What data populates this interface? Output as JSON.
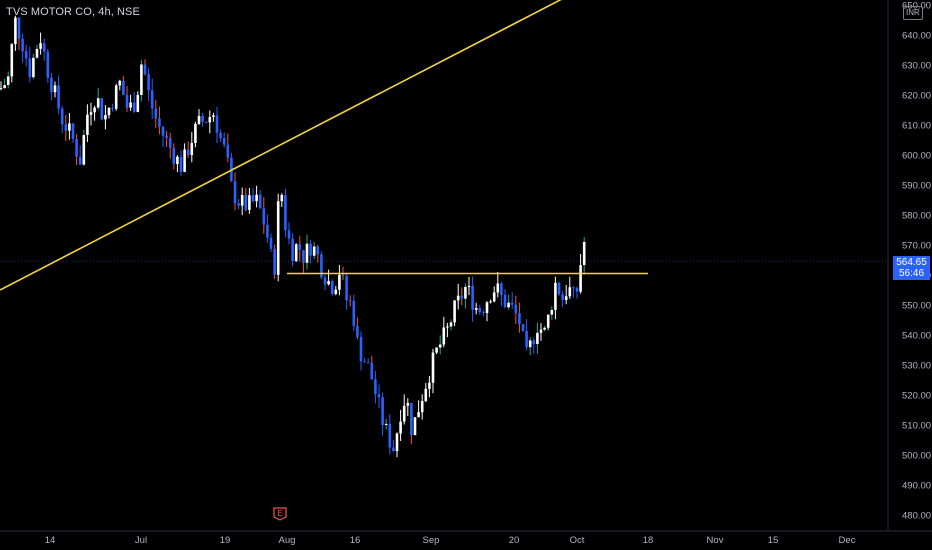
{
  "header": {
    "title": "TVS MOTOR CO, 4h, NSE",
    "currency": "INR"
  },
  "price_tag": {
    "price": "564.65",
    "countdown": "56:46"
  },
  "earnings_marker": {
    "label": "E"
  },
  "colors": {
    "background": "#000000",
    "up": "#ffffff",
    "down": "#2962ff",
    "wick_down": "#ef5350",
    "wick_up": "#26a69a",
    "trendline": "#f2d43c",
    "price_tag": "#2962ff",
    "axis_text": "#b2b5be"
  },
  "chart_data": {
    "type": "candlestick",
    "ylim": [
      477,
      652
    ],
    "y_ticks": [
      480,
      490,
      500,
      510,
      520,
      530,
      540,
      550,
      560,
      570,
      580,
      590,
      600,
      610,
      620,
      630,
      640,
      650
    ],
    "x_labels": [
      "14",
      "Jul",
      "19",
      "Aug",
      "16",
      "Sep",
      "20",
      "Oct",
      "18",
      "Nov",
      "15",
      "Dec"
    ],
    "last_price": 564.65,
    "price_path": [
      [
        0,
        622
      ],
      [
        8,
        625
      ],
      [
        15,
        645
      ],
      [
        22,
        638
      ],
      [
        30,
        628
      ],
      [
        40,
        640
      ],
      [
        48,
        628
      ],
      [
        55,
        620
      ],
      [
        62,
        612
      ],
      [
        72,
        606
      ],
      [
        80,
        598
      ],
      [
        88,
        615
      ],
      [
        96,
        620
      ],
      [
        104,
        612
      ],
      [
        112,
        618
      ],
      [
        120,
        624
      ],
      [
        128,
        615
      ],
      [
        136,
        618
      ],
      [
        142,
        632
      ],
      [
        150,
        618
      ],
      [
        158,
        610
      ],
      [
        166,
        605
      ],
      [
        174,
        600
      ],
      [
        182,
        596
      ],
      [
        190,
        604
      ],
      [
        198,
        610
      ],
      [
        206,
        612
      ],
      [
        214,
        614
      ],
      [
        220,
        606
      ],
      [
        226,
        600
      ],
      [
        232,
        588
      ],
      [
        240,
        584
      ],
      [
        248,
        583
      ],
      [
        256,
        585
      ],
      [
        262,
        580
      ],
      [
        268,
        572
      ],
      [
        274,
        560
      ],
      [
        280,
        592
      ],
      [
        286,
        575
      ],
      [
        292,
        568
      ],
      [
        298,
        570
      ],
      [
        304,
        566
      ],
      [
        310,
        570
      ],
      [
        316,
        568
      ],
      [
        322,
        562
      ],
      [
        328,
        558
      ],
      [
        334,
        556
      ],
      [
        340,
        562
      ],
      [
        346,
        552
      ],
      [
        352,
        550
      ],
      [
        358,
        536
      ],
      [
        364,
        532
      ],
      [
        370,
        528
      ],
      [
        376,
        520
      ],
      [
        382,
        512
      ],
      [
        388,
        506
      ],
      [
        394,
        502
      ],
      [
        400,
        514
      ],
      [
        406,
        520
      ],
      [
        412,
        508
      ],
      [
        418,
        515
      ],
      [
        424,
        522
      ],
      [
        430,
        528
      ],
      [
        436,
        534
      ],
      [
        442,
        538
      ],
      [
        448,
        542
      ],
      [
        454,
        548
      ],
      [
        460,
        552
      ],
      [
        466,
        556
      ],
      [
        472,
        552
      ],
      [
        478,
        548
      ],
      [
        484,
        550
      ],
      [
        490,
        554
      ],
      [
        496,
        556
      ],
      [
        502,
        552
      ],
      [
        508,
        550
      ],
      [
        514,
        548
      ],
      [
        520,
        544
      ],
      [
        526,
        532
      ],
      [
        532,
        538
      ],
      [
        538,
        544
      ],
      [
        544,
        540
      ],
      [
        550,
        548
      ],
      [
        556,
        558
      ],
      [
        562,
        552
      ],
      [
        568,
        556
      ],
      [
        574,
        552
      ],
      [
        578,
        556
      ],
      [
        582,
        568
      ],
      [
        585,
        572
      ]
    ],
    "trendlines": [
      {
        "from": [
          "start",
          555
        ],
        "to": [
          "Sep, past 20",
          652
        ]
      },
      {
        "from": [
          "Aug",
          560.5
        ],
        "to": [
          "18",
          560.5
        ]
      }
    ]
  }
}
